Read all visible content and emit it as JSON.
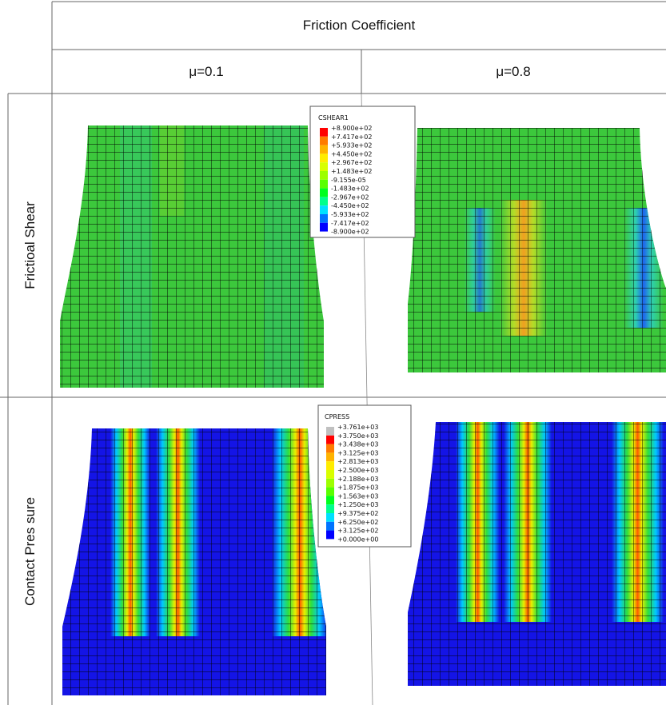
{
  "header": {
    "title": "Friction Coefficient"
  },
  "columns": [
    "μ=0.1",
    "μ=0.8"
  ],
  "rows": [
    "Frictioal Shear",
    "Contact Pres sure"
  ],
  "legends": [
    {
      "title": "CSHEAR1",
      "values": [
        "+8.900e+02",
        "+7.417e+02",
        "+5.933e+02",
        "+4.450e+02",
        "+2.967e+02",
        "+1.483e+02",
        "-9.155e-05",
        "-1.483e+02",
        "-2.967e+02",
        "-4.450e+02",
        "-5.933e+02",
        "-7.417e+02",
        "-8.900e+02"
      ],
      "colors": [
        "#ff0000",
        "#ff7b00",
        "#ffb300",
        "#ffec00",
        "#d8ff00",
        "#9dff00",
        "#5aff00",
        "#00ff1e",
        "#00ff8c",
        "#00e0ff",
        "#0073ff",
        "#0000ff"
      ]
    },
    {
      "title": "CPRESS",
      "values": [
        "+3.761e+03",
        "+3.750e+03",
        "+3.438e+03",
        "+3.125e+03",
        "+2.813e+03",
        "+2.500e+03",
        "+2.188e+03",
        "+1.875e+03",
        "+1.563e+03",
        "+1.250e+03",
        "+9.375e+02",
        "+6.250e+02",
        "+3.125e+02",
        "+0.000e+00"
      ],
      "colors": [
        "#c0c0c0",
        "#ff0000",
        "#ff7b00",
        "#ffb300",
        "#ffec00",
        "#d8ff00",
        "#9dff00",
        "#5aff00",
        "#00ff1e",
        "#00ff8c",
        "#00e0ff",
        "#0073ff",
        "#0000ff"
      ]
    }
  ]
}
